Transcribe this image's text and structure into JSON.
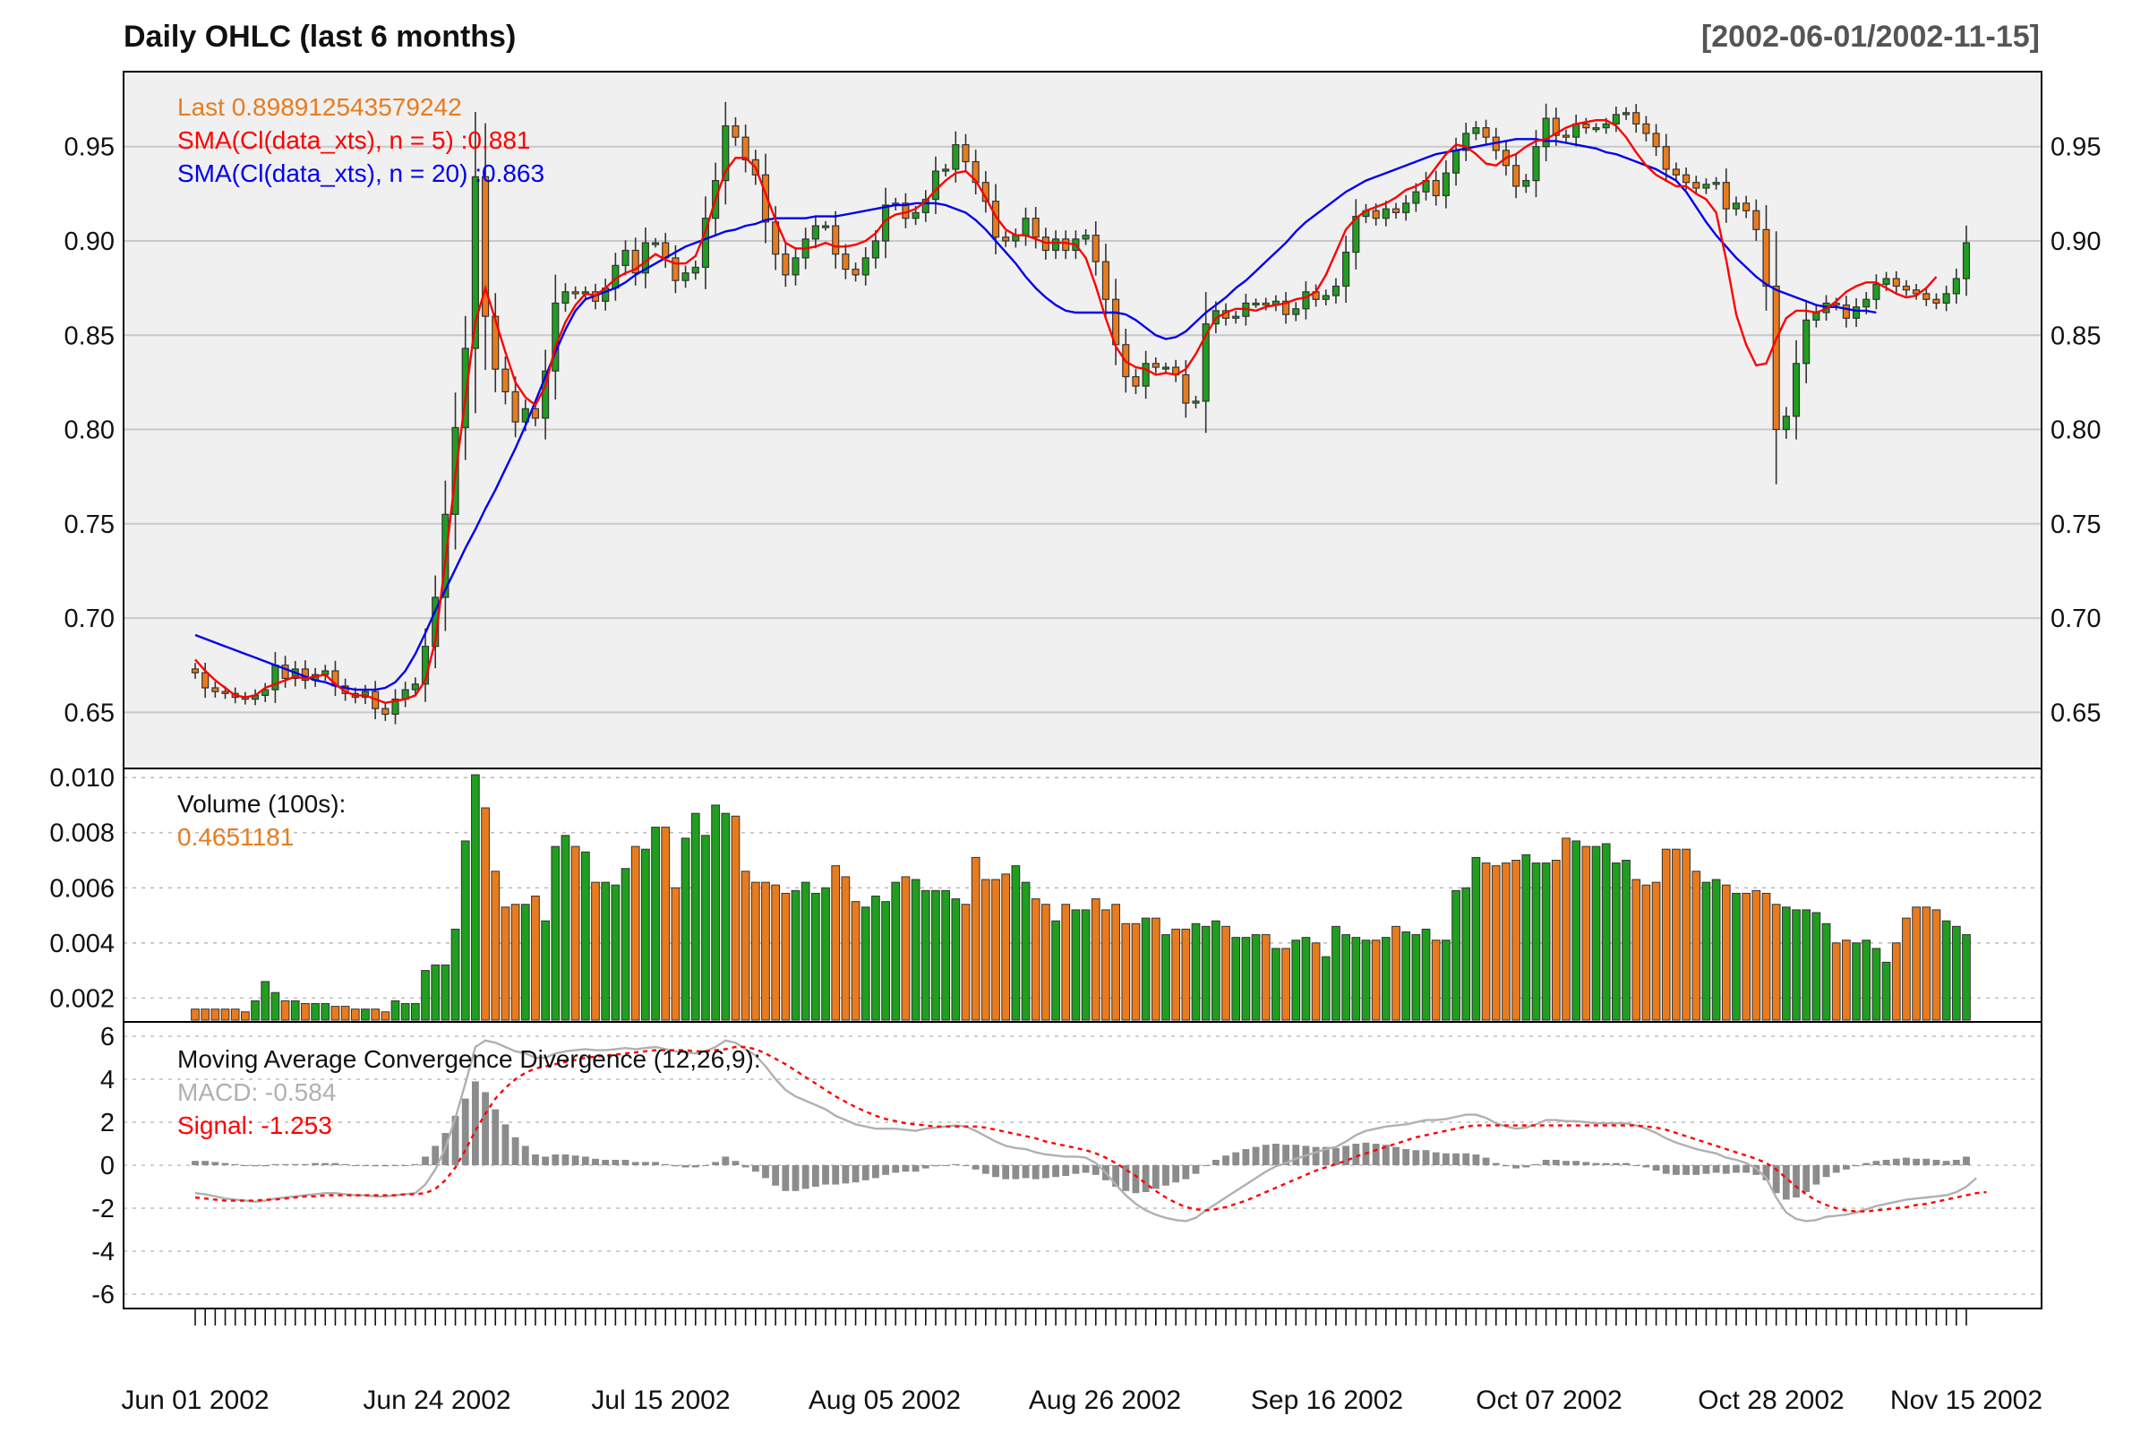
{
  "header": {
    "title": "Daily OHLC (last 6 months)",
    "range": "[2002-06-01/2002-11-15]"
  },
  "colors": {
    "up": "#1f9e1f",
    "down": "#e87b1e",
    "sma5": "#ff0000",
    "sma20": "#0000ee",
    "macd": "#b0b0b0",
    "signal": "#ff0000",
    "hist": "#8c8c8c",
    "panel_bg": "#f0f0f0",
    "grid": "#c8c8c8"
  },
  "chart_data": {
    "type": "candlestick",
    "x_labels": [
      "Jun 01 2002",
      "Jun 24 2002",
      "Jul 15 2002",
      "Aug 05 2002",
      "Aug 26 2002",
      "Sep 16 2002",
      "Oct 07 2002",
      "Oct 28 2002",
      "Nov 15 2002"
    ],
    "price_panel": {
      "yticks": [
        "0.65",
        "0.70",
        "0.75",
        "0.80",
        "0.85",
        "0.90",
        "0.95"
      ],
      "legend": {
        "last": "Last 0.898912543579242",
        "sma5": "SMA(Cl(data_xts), n = 5) :0.881",
        "sma20": "SMA(Cl(data_xts), n = 20) :0.863"
      },
      "ylim": [
        0.625,
        0.985
      ],
      "close": [
        0.671,
        0.663,
        0.661,
        0.66,
        0.658,
        0.657,
        0.659,
        0.662,
        0.675,
        0.668,
        0.673,
        0.667,
        0.67,
        0.672,
        0.664,
        0.66,
        0.658,
        0.661,
        0.652,
        0.649,
        0.657,
        0.662,
        0.665,
        0.685,
        0.711,
        0.755,
        0.801,
        0.843,
        0.934,
        0.86,
        0.832,
        0.82,
        0.804,
        0.811,
        0.806,
        0.831,
        0.867,
        0.873,
        0.872,
        0.873,
        0.868,
        0.875,
        0.887,
        0.895,
        0.883,
        0.899,
        0.899,
        0.891,
        0.879,
        0.883,
        0.886,
        0.912,
        0.932,
        0.961,
        0.955,
        0.943,
        0.935,
        0.91,
        0.893,
        0.882,
        0.891,
        0.901,
        0.908,
        0.908,
        0.893,
        0.885,
        0.882,
        0.891,
        0.9,
        0.919,
        0.92,
        0.912,
        0.915,
        0.922,
        0.937,
        0.938,
        0.951,
        0.942,
        0.931,
        0.921,
        0.902,
        0.9,
        0.903,
        0.912,
        0.902,
        0.895,
        0.901,
        0.895,
        0.901,
        0.903,
        0.889,
        0.869,
        0.845,
        0.828,
        0.823,
        0.835,
        0.833,
        0.833,
        0.829,
        0.814,
        0.815,
        0.856,
        0.863,
        0.859,
        0.86,
        0.867,
        0.867,
        0.866,
        0.868,
        0.861,
        0.864,
        0.873,
        0.869,
        0.871,
        0.876,
        0.894,
        0.913,
        0.916,
        0.912,
        0.917,
        0.915,
        0.92,
        0.926,
        0.932,
        0.924,
        0.936,
        0.948,
        0.957,
        0.96,
        0.955,
        0.948,
        0.94,
        0.929,
        0.932,
        0.95,
        0.965,
        0.956,
        0.955,
        0.962,
        0.96,
        0.96,
        0.962,
        0.967,
        0.968,
        0.962,
        0.957,
        0.95,
        0.938,
        0.935,
        0.931,
        0.928,
        0.93,
        0.931,
        0.917,
        0.92,
        0.916,
        0.906,
        0.876,
        0.8,
        0.807,
        0.835,
        0.858,
        0.862,
        0.867,
        0.866,
        0.859,
        0.865,
        0.869,
        0.877,
        0.88,
        0.876,
        0.874,
        0.872,
        0.869,
        0.867,
        0.872,
        0.88,
        0.899
      ],
      "sma5": [
        0.678,
        0.672,
        0.667,
        0.663,
        0.659,
        0.658,
        0.659,
        0.663,
        0.665,
        0.667,
        0.669,
        0.668,
        0.669,
        0.67,
        0.665,
        0.661,
        0.659,
        0.659,
        0.657,
        0.655,
        0.656,
        0.657,
        0.659,
        0.667,
        0.688,
        0.73,
        0.776,
        0.816,
        0.857,
        0.875,
        0.858,
        0.841,
        0.825,
        0.817,
        0.813,
        0.823,
        0.844,
        0.857,
        0.866,
        0.872,
        0.871,
        0.875,
        0.88,
        0.883,
        0.885,
        0.889,
        0.893,
        0.89,
        0.888,
        0.888,
        0.892,
        0.905,
        0.922,
        0.937,
        0.944,
        0.944,
        0.939,
        0.925,
        0.911,
        0.899,
        0.896,
        0.896,
        0.897,
        0.899,
        0.897,
        0.897,
        0.898,
        0.9,
        0.904,
        0.911,
        0.914,
        0.915,
        0.917,
        0.921,
        0.927,
        0.932,
        0.936,
        0.937,
        0.932,
        0.923,
        0.913,
        0.906,
        0.903,
        0.903,
        0.901,
        0.899,
        0.899,
        0.899,
        0.898,
        0.891,
        0.876,
        0.859,
        0.844,
        0.836,
        0.833,
        0.832,
        0.829,
        0.83,
        0.829,
        0.832,
        0.84,
        0.85,
        0.859,
        0.862,
        0.864,
        0.864,
        0.863,
        0.865,
        0.866,
        0.867,
        0.869,
        0.87,
        0.873,
        0.882,
        0.894,
        0.906,
        0.912,
        0.916,
        0.918,
        0.92,
        0.923,
        0.927,
        0.929,
        0.932,
        0.939,
        0.946,
        0.951,
        0.95,
        0.946,
        0.941,
        0.94,
        0.944,
        0.946,
        0.95,
        0.953,
        0.954,
        0.957,
        0.96,
        0.962,
        0.963,
        0.964,
        0.964,
        0.961,
        0.955,
        0.947,
        0.94,
        0.935,
        0.932,
        0.929,
        0.929,
        0.925,
        0.922,
        0.915,
        0.89,
        0.861,
        0.845,
        0.834,
        0.835,
        0.848,
        0.859,
        0.863,
        0.863,
        0.862,
        0.864,
        0.868,
        0.873,
        0.876,
        0.878,
        0.878,
        0.875,
        0.872,
        0.87,
        0.871,
        0.875,
        0.881
      ],
      "sma20": [
        0.691,
        0.689,
        0.687,
        0.685,
        0.683,
        0.681,
        0.679,
        0.677,
        0.675,
        0.673,
        0.671,
        0.669,
        0.667,
        0.666,
        0.664,
        0.663,
        0.662,
        0.662,
        0.662,
        0.663,
        0.666,
        0.672,
        0.681,
        0.692,
        0.704,
        0.715,
        0.726,
        0.737,
        0.747,
        0.758,
        0.768,
        0.779,
        0.79,
        0.802,
        0.815,
        0.828,
        0.841,
        0.853,
        0.863,
        0.869,
        0.871,
        0.873,
        0.875,
        0.878,
        0.882,
        0.885,
        0.888,
        0.891,
        0.894,
        0.897,
        0.899,
        0.901,
        0.903,
        0.905,
        0.906,
        0.908,
        0.909,
        0.911,
        0.912,
        0.912,
        0.912,
        0.912,
        0.913,
        0.913,
        0.913,
        0.914,
        0.915,
        0.916,
        0.917,
        0.918,
        0.919,
        0.919,
        0.92,
        0.92,
        0.92,
        0.919,
        0.917,
        0.915,
        0.911,
        0.906,
        0.9,
        0.894,
        0.888,
        0.881,
        0.875,
        0.87,
        0.866,
        0.863,
        0.862,
        0.862,
        0.862,
        0.862,
        0.862,
        0.861,
        0.858,
        0.854,
        0.85,
        0.848,
        0.849,
        0.852,
        0.857,
        0.862,
        0.866,
        0.87,
        0.875,
        0.879,
        0.884,
        0.889,
        0.894,
        0.899,
        0.905,
        0.91,
        0.914,
        0.918,
        0.922,
        0.926,
        0.929,
        0.932,
        0.934,
        0.936,
        0.938,
        0.94,
        0.942,
        0.944,
        0.946,
        0.947,
        0.948,
        0.949,
        0.95,
        0.951,
        0.952,
        0.953,
        0.954,
        0.954,
        0.954,
        0.953,
        0.953,
        0.952,
        0.951,
        0.95,
        0.949,
        0.947,
        0.946,
        0.944,
        0.942,
        0.94,
        0.938,
        0.935,
        0.932,
        0.926,
        0.918,
        0.91,
        0.903,
        0.897,
        0.891,
        0.886,
        0.881,
        0.877,
        0.874,
        0.872,
        0.87,
        0.868,
        0.866,
        0.865,
        0.865,
        0.864,
        0.863,
        0.863,
        0.862
      ]
    },
    "volume_panel": {
      "label": "Volume (100s):",
      "last": "0.4651181",
      "yticks": [
        "0.002",
        "0.004",
        "0.006",
        "0.008",
        "0.010"
      ],
      "ylim": [
        0.0012,
        0.0102
      ],
      "values": [
        0.0016,
        0.0016,
        0.0016,
        0.0016,
        0.0016,
        0.0015,
        0.0019,
        0.0026,
        0.0022,
        0.0019,
        0.0019,
        0.0018,
        0.0018,
        0.0018,
        0.0017,
        0.0017,
        0.0016,
        0.0016,
        0.0016,
        0.0015,
        0.0019,
        0.0018,
        0.0018,
        0.003,
        0.0032,
        0.0032,
        0.0045,
        0.0077,
        0.0101,
        0.0089,
        0.0066,
        0.0053,
        0.0054,
        0.0054,
        0.0057,
        0.0048,
        0.0075,
        0.0079,
        0.0075,
        0.0073,
        0.0062,
        0.0062,
        0.0061,
        0.0067,
        0.0075,
        0.0074,
        0.0082,
        0.0082,
        0.006,
        0.0078,
        0.0087,
        0.0079,
        0.009,
        0.0087,
        0.0086,
        0.0066,
        0.0062,
        0.0062,
        0.0061,
        0.0058,
        0.0059,
        0.0062,
        0.0058,
        0.006,
        0.0068,
        0.0064,
        0.0055,
        0.0053,
        0.0057,
        0.0055,
        0.0062,
        0.0064,
        0.0063,
        0.0059,
        0.0059,
        0.0059,
        0.0056,
        0.0054,
        0.0071,
        0.0063,
        0.0063,
        0.0065,
        0.0068,
        0.0062,
        0.0056,
        0.0054,
        0.0048,
        0.0054,
        0.0052,
        0.0052,
        0.0056,
        0.0052,
        0.0054,
        0.0047,
        0.0047,
        0.0049,
        0.0049,
        0.0043,
        0.0045,
        0.0045,
        0.0047,
        0.0046,
        0.0048,
        0.0046,
        0.0042,
        0.0042,
        0.0043,
        0.0043,
        0.0038,
        0.0038,
        0.0041,
        0.0042,
        0.004,
        0.0035,
        0.0046,
        0.0043,
        0.0042,
        0.0041,
        0.0041,
        0.0042,
        0.0046,
        0.0044,
        0.0043,
        0.0045,
        0.0041,
        0.0041,
        0.0059,
        0.006,
        0.0071,
        0.0069,
        0.0068,
        0.0069,
        0.007,
        0.0072,
        0.0069,
        0.0069,
        0.007,
        0.0078,
        0.0077,
        0.0075,
        0.0075,
        0.0076,
        0.0069,
        0.007,
        0.0063,
        0.0061,
        0.0062,
        0.0074,
        0.0074,
        0.0074,
        0.0066,
        0.0062,
        0.0063,
        0.0061,
        0.0058,
        0.0058,
        0.0059,
        0.0058,
        0.0054,
        0.0053,
        0.0052,
        0.0052,
        0.0051,
        0.0047,
        0.004,
        0.0041,
        0.004,
        0.0041,
        0.0038,
        0.0033,
        0.004,
        0.0049,
        0.0053,
        0.0053,
        0.0052,
        0.0048,
        0.0046,
        0.0043,
        0.0039,
        0.0038,
        0.0038,
        0.004,
        0.0036,
        0.0041,
        0.0044,
        0.0041,
        0.004,
        0.0037,
        0.0036,
        0.0037,
        0.004,
        0.0045
      ]
    },
    "macd_panel": {
      "label": "Moving Average Convergence Divergence (12,26,9):",
      "macd_text": "MACD: -0.584",
      "signal_text": "Signal: -1.253",
      "yticks": [
        "-6",
        "-4",
        "-2",
        "0",
        "2",
        "4",
        "6"
      ],
      "ylim": [
        -6.5,
        6.5
      ],
      "macd": [
        -1.3,
        -1.35,
        -1.45,
        -1.55,
        -1.6,
        -1.65,
        -1.7,
        -1.65,
        -1.55,
        -1.5,
        -1.45,
        -1.4,
        -1.35,
        -1.3,
        -1.3,
        -1.35,
        -1.4,
        -1.4,
        -1.45,
        -1.45,
        -1.4,
        -1.35,
        -1.3,
        -0.9,
        -0.2,
        0.8,
        2.2,
        3.8,
        5.5,
        5.8,
        5.7,
        5.5,
        5.3,
        5.2,
        5.0,
        5.0,
        5.2,
        5.3,
        5.35,
        5.4,
        5.35,
        5.35,
        5.4,
        5.45,
        5.4,
        5.45,
        5.5,
        5.4,
        5.3,
        5.25,
        5.2,
        5.3,
        5.5,
        5.8,
        5.7,
        5.4,
        5.1,
        4.6,
        4.0,
        3.5,
        3.2,
        3.0,
        2.8,
        2.6,
        2.3,
        2.1,
        1.9,
        1.8,
        1.7,
        1.7,
        1.7,
        1.65,
        1.6,
        1.7,
        1.75,
        1.8,
        1.85,
        1.8,
        1.6,
        1.35,
        1.1,
        0.9,
        0.8,
        0.75,
        0.6,
        0.5,
        0.45,
        0.4,
        0.4,
        0.35,
        0.1,
        -0.35,
        -0.9,
        -1.4,
        -1.8,
        -2.1,
        -2.3,
        -2.45,
        -2.55,
        -2.6,
        -2.45,
        -2.1,
        -1.8,
        -1.5,
        -1.2,
        -0.9,
        -0.6,
        -0.3,
        -0.05,
        0.1,
        0.3,
        0.45,
        0.6,
        0.75,
        0.85,
        1.1,
        1.4,
        1.6,
        1.7,
        1.8,
        1.85,
        1.9,
        2.0,
        2.1,
        2.1,
        2.15,
        2.25,
        2.35,
        2.35,
        2.2,
        1.95,
        1.8,
        1.7,
        1.75,
        1.9,
        2.1,
        2.1,
        2.05,
        2.05,
        2.0,
        1.95,
        1.95,
        1.95,
        1.95,
        1.85,
        1.7,
        1.5,
        1.25,
        1.05,
        0.9,
        0.75,
        0.65,
        0.55,
        0.35,
        0.25,
        0.1,
        -0.15,
        -0.6,
        -1.5,
        -2.2,
        -2.5,
        -2.6,
        -2.55,
        -2.4,
        -2.35,
        -2.3,
        -2.2,
        -2.05,
        -1.9,
        -1.8,
        -1.7,
        -1.6,
        -1.55,
        -1.5,
        -1.45,
        -1.4,
        -1.25,
        -1.0,
        -0.6
      ],
      "signal": [
        -1.5,
        -1.55,
        -1.6,
        -1.65,
        -1.65,
        -1.65,
        -1.65,
        -1.6,
        -1.6,
        -1.55,
        -1.5,
        -1.45,
        -1.45,
        -1.4,
        -1.4,
        -1.4,
        -1.4,
        -1.4,
        -1.4,
        -1.4,
        -1.4,
        -1.35,
        -1.35,
        -1.3,
        -1.1,
        -0.7,
        -0.1,
        0.7,
        1.6,
        2.4,
        3.1,
        3.6,
        4.0,
        4.3,
        4.5,
        4.6,
        4.7,
        4.8,
        4.9,
        5.0,
        5.05,
        5.1,
        5.15,
        5.2,
        5.25,
        5.3,
        5.35,
        5.35,
        5.35,
        5.35,
        5.3,
        5.3,
        5.35,
        5.4,
        5.5,
        5.5,
        5.4,
        5.2,
        4.95,
        4.7,
        4.4,
        4.1,
        3.8,
        3.5,
        3.2,
        2.95,
        2.7,
        2.5,
        2.3,
        2.15,
        2.05,
        1.95,
        1.9,
        1.85,
        1.8,
        1.8,
        1.8,
        1.8,
        1.8,
        1.75,
        1.65,
        1.55,
        1.45,
        1.35,
        1.25,
        1.1,
        1.0,
        0.9,
        0.8,
        0.7,
        0.55,
        0.35,
        0.1,
        -0.2,
        -0.5,
        -0.85,
        -1.2,
        -1.5,
        -1.75,
        -1.95,
        -2.05,
        -2.1,
        -2.05,
        -1.95,
        -1.8,
        -1.65,
        -1.45,
        -1.25,
        -1.05,
        -0.85,
        -0.65,
        -0.45,
        -0.25,
        -0.1,
        0.05,
        0.2,
        0.4,
        0.55,
        0.7,
        0.85,
        1.0,
        1.15,
        1.3,
        1.4,
        1.5,
        1.6,
        1.7,
        1.8,
        1.85,
        1.85,
        1.85,
        1.85,
        1.85,
        1.85,
        1.85,
        1.85,
        1.85,
        1.85,
        1.85,
        1.85,
        1.85,
        1.85,
        1.85,
        1.85,
        1.85,
        1.8,
        1.75,
        1.65,
        1.5,
        1.35,
        1.2,
        1.05,
        0.9,
        0.75,
        0.6,
        0.45,
        0.3,
        0.1,
        -0.2,
        -0.6,
        -1.0,
        -1.35,
        -1.65,
        -1.85,
        -2.0,
        -2.1,
        -2.15,
        -2.15,
        -2.1,
        -2.05,
        -2.0,
        -1.95,
        -1.85,
        -1.8,
        -1.7,
        -1.6,
        -1.5,
        -1.4,
        -1.3,
        -1.25
      ]
    }
  }
}
